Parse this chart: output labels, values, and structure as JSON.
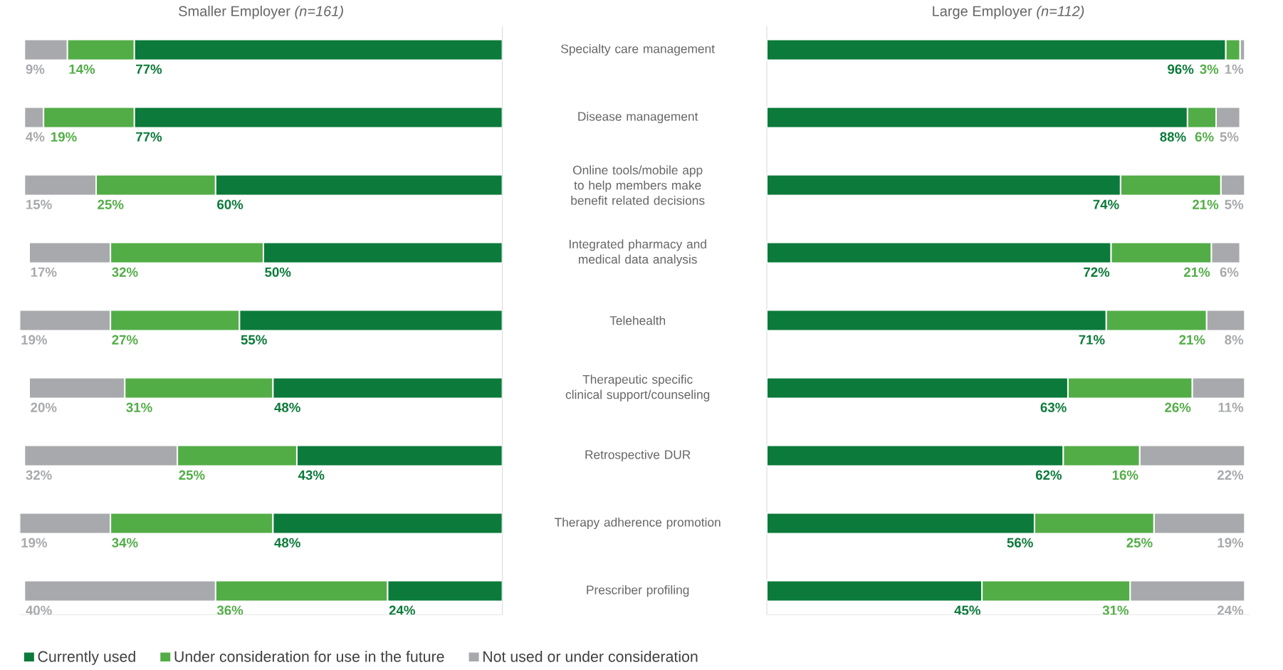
{
  "chart_data": [
    {
      "type": "bar",
      "orientation": "horizontal",
      "stacked": true,
      "title": "Smaller Employer *(n=161)*",
      "categories": [
        null,
        null,
        null,
        null,
        null,
        null,
        null,
        null,
        null
      ],
      "xlim": [
        101,
        0
      ],
      "tick_labels": false,
      "legend": "bottom",
      "series": [
        {
          "name": "Currently used",
          "color": "#0b7a3a",
          "values": [
            77,
            77,
            60,
            50,
            55,
            48,
            43,
            48,
            24
          ],
          "value_labels": [
            "77%",
            "77%",
            "60%",
            "50%",
            "55%",
            "48%",
            "43%",
            "48%",
            "24%"
          ]
        },
        {
          "name": "Under consideration for use in the future",
          "color": "#52ad47",
          "values": [
            14,
            19,
            25,
            32,
            27,
            31,
            25,
            34,
            36
          ],
          "value_labels": [
            "14%",
            "19%",
            "25%",
            "32%",
            "27%",
            "31%",
            "25%",
            "34%",
            "36%"
          ]
        },
        {
          "name": "Not used or under consideration",
          "color": "#a7a9ac",
          "values": [
            9,
            4,
            15,
            17,
            19,
            20,
            32,
            19,
            40
          ],
          "value_labels": [
            "9%",
            "4%",
            "15%",
            "17%",
            "19%",
            "20%",
            "32%",
            "19%",
            "40%"
          ]
        }
      ]
    },
    {
      "type": "bar",
      "orientation": "horizontal",
      "stacked": true,
      "title": "Large Employer *(n=112)*",
      "categories": [
        "Specialty care management",
        "Disease management",
        "Online tools/mobile app to help members make benefit related decisions",
        "Integrated pharmacy and medical data analysis",
        "Telehealth",
        "Therapeutic specific clinical support/counseling",
        "Retrospective DUR",
        "Therapy adherence promotion",
        "Prescriber profiling"
      ],
      "xlim": [
        0,
        101
      ],
      "tick_labels": "y",
      "series": [
        {
          "color": "#0b7a3a",
          "values": [
            96,
            88,
            74,
            72,
            71,
            63,
            62,
            56,
            45
          ],
          "value_labels": [
            "96%",
            "88%",
            "74%",
            "72%",
            "71%",
            "63%",
            "62%",
            "56%",
            "45%"
          ]
        },
        {
          "color": "#52ad47",
          "values": [
            3,
            6,
            21,
            21,
            21,
            26,
            16,
            25,
            31
          ],
          "value_labels": [
            "3%",
            "6%",
            "21%",
            "21%",
            "21%",
            "26%",
            "16%",
            "25%",
            "31%"
          ]
        },
        {
          "color": "#a7a9ac",
          "values": [
            1,
            5,
            5,
            6,
            8,
            11,
            22,
            19,
            24
          ],
          "value_labels": [
            "1%",
            "5%",
            "5%",
            "6%",
            "8%",
            "11%",
            "22%",
            "19%",
            "24%"
          ]
        }
      ]
    }
  ]
}
